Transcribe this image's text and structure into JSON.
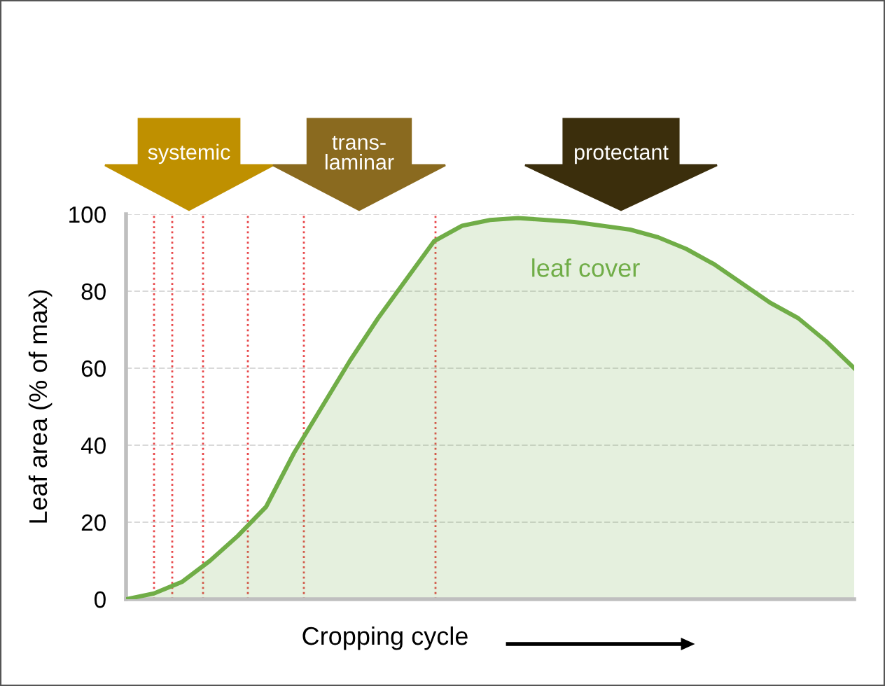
{
  "chart_data": {
    "type": "area",
    "ylabel": "Leaf area (% of max)",
    "xlabel": "Cropping cycle",
    "categories": [
      null,
      null,
      null,
      null,
      null,
      null,
      null,
      null,
      null,
      null,
      null,
      null,
      null,
      null,
      null,
      null,
      null,
      null,
      null,
      null,
      null,
      null,
      null,
      null,
      null,
      null,
      null
    ],
    "series": [
      {
        "color": "#70ad47",
        "values": [
          0,
          1.5,
          4.5,
          10,
          16.5,
          24,
          38,
          50,
          62,
          73,
          83,
          93,
          97,
          98.5,
          99,
          98.5,
          98,
          97,
          96,
          94,
          91,
          87,
          82,
          77,
          73,
          67,
          60
        ]
      }
    ],
    "ylim": [
      0,
      100
    ],
    "yticks": [
      0,
      20,
      40,
      60,
      80,
      100
    ],
    "grid": "y",
    "annotations": [
      "leaf cover",
      "systemic",
      "trans-\nlaminar",
      "protectant"
    ],
    "tick_labels": "y"
  }
}
